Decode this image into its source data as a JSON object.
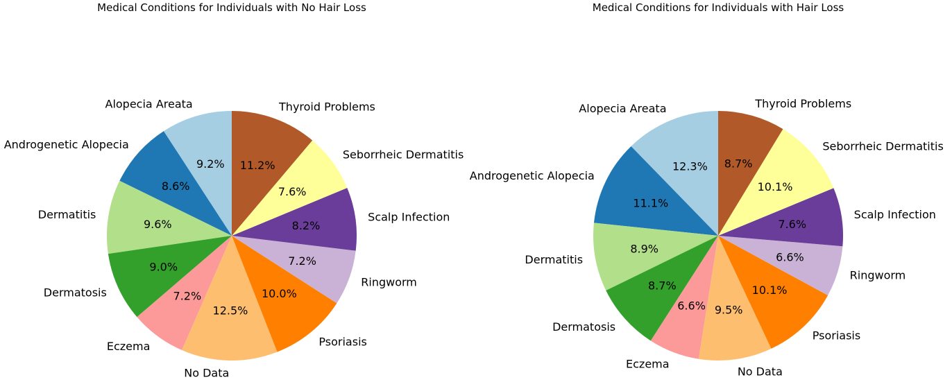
{
  "chart_data": [
    {
      "type": "pie",
      "title": "Medical Conditions for Individuals with No Hair Loss",
      "start_angle_deg": 90,
      "direction": "counterclockwise",
      "slices": [
        {
          "label": "Alopecia Areata",
          "value": 9.2,
          "pct_label": "9.2%",
          "color": "#a6cee3"
        },
        {
          "label": "Androgenetic Alopecia",
          "value": 8.6,
          "pct_label": "8.6%",
          "color": "#1f78b4"
        },
        {
          "label": "Dermatitis",
          "value": 9.6,
          "pct_label": "9.6%",
          "color": "#b2df8a"
        },
        {
          "label": "Dermatosis",
          "value": 9.0,
          "pct_label": "9.0%",
          "color": "#33a02c"
        },
        {
          "label": "Eczema",
          "value": 7.2,
          "pct_label": "7.2%",
          "color": "#fb9a99"
        },
        {
          "label": "No Data",
          "value": 12.5,
          "pct_label": "12.5%",
          "color": "#fdbf6f"
        },
        {
          "label": "Psoriasis",
          "value": 10.0,
          "pct_label": "10.0%",
          "color": "#ff7f00"
        },
        {
          "label": "Ringworm",
          "value": 7.2,
          "pct_label": "7.2%",
          "color": "#cab2d6"
        },
        {
          "label": "Scalp Infection",
          "value": 8.2,
          "pct_label": "8.2%",
          "color": "#6a3d9a"
        },
        {
          "label": "Seborrheic Dermatitis",
          "value": 7.6,
          "pct_label": "7.6%",
          "color": "#ffff99"
        },
        {
          "label": "Thyroid Problems",
          "value": 11.2,
          "pct_label": "11.2%",
          "color": "#b15928"
        }
      ]
    },
    {
      "type": "pie",
      "title": "Medical Conditions for Individuals with Hair Loss",
      "start_angle_deg": 90,
      "direction": "counterclockwise",
      "slices": [
        {
          "label": "Alopecia Areata",
          "value": 12.3,
          "pct_label": "12.3%",
          "color": "#a6cee3"
        },
        {
          "label": "Androgenetic Alopecia",
          "value": 11.1,
          "pct_label": "11.1%",
          "color": "#1f78b4"
        },
        {
          "label": "Dermatitis",
          "value": 8.9,
          "pct_label": "8.9%",
          "color": "#b2df8a"
        },
        {
          "label": "Dermatosis",
          "value": 8.7,
          "pct_label": "8.7%",
          "color": "#33a02c"
        },
        {
          "label": "Eczema",
          "value": 6.6,
          "pct_label": "6.6%",
          "color": "#fb9a99"
        },
        {
          "label": "No Data",
          "value": 9.5,
          "pct_label": "9.5%",
          "color": "#fdbf6f"
        },
        {
          "label": "Psoriasis",
          "value": 10.1,
          "pct_label": "10.1%",
          "color": "#ff7f00"
        },
        {
          "label": "Ringworm",
          "value": 6.6,
          "pct_label": "6.6%",
          "color": "#cab2d6"
        },
        {
          "label": "Scalp Infection",
          "value": 7.6,
          "pct_label": "7.6%",
          "color": "#6a3d9a"
        },
        {
          "label": "Seborrheic Dermatitis",
          "value": 10.1,
          "pct_label": "10.1%",
          "color": "#ffff99"
        },
        {
          "label": "Thyroid Problems",
          "value": 8.7,
          "pct_label": "8.7%",
          "color": "#b15928"
        }
      ]
    }
  ]
}
